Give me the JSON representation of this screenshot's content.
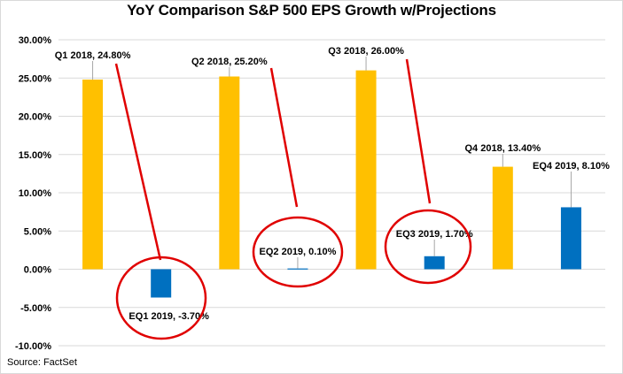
{
  "chart_data": {
    "type": "bar",
    "title": "YoY Comparison S&P 500 EPS Growth w/Projections",
    "xlabel": "",
    "ylabel": "",
    "ylim": [
      -10,
      30
    ],
    "y_ticks": [
      30,
      25,
      20,
      15,
      10,
      5,
      0,
      -5,
      -10
    ],
    "y_tick_labels": [
      "30.00%",
      "25.00%",
      "20.00%",
      "15.00%",
      "10.00%",
      "5.00%",
      "0.00%",
      "-5.00%",
      "-10.00%"
    ],
    "grid": true,
    "legend": "none",
    "categories": [
      "Q1 2018",
      "EQ1 2019",
      "Q2 2018",
      "EQ2 2019",
      "Q3 2018",
      "EQ3 2019",
      "Q4 2018",
      "EQ4 2019"
    ],
    "values": [
      24.8,
      -3.7,
      25.2,
      0.1,
      26.0,
      1.7,
      13.4,
      8.1
    ],
    "data_labels": [
      "Q1 2018, 24.80%",
      "EQ1 2019, -3.70%",
      "Q2 2018, 25.20%",
      "EQ2 2019, 0.10%",
      "Q3 2018, 26.00%",
      "EQ3 2019, 1.70%",
      "Q4 2018, 13.40%",
      "EQ4 2019, 8.10%"
    ],
    "bar_colors": [
      "#ffc000",
      "#0070c0",
      "#ffc000",
      "#0070c0",
      "#ffc000",
      "#0070c0",
      "#ffc000",
      "#0070c0"
    ],
    "annotations": {
      "circled_bars": [
        "EQ1 2019",
        "EQ2 2019",
        "EQ3 2019"
      ],
      "arrow_lines": [
        [
          "Q1 2018",
          "EQ1 2019"
        ],
        [
          "Q2 2018",
          "EQ2 2019"
        ],
        [
          "Q3 2018",
          "EQ3 2019"
        ]
      ],
      "color": "#e00000"
    }
  },
  "source_text": "Source: FactSet"
}
